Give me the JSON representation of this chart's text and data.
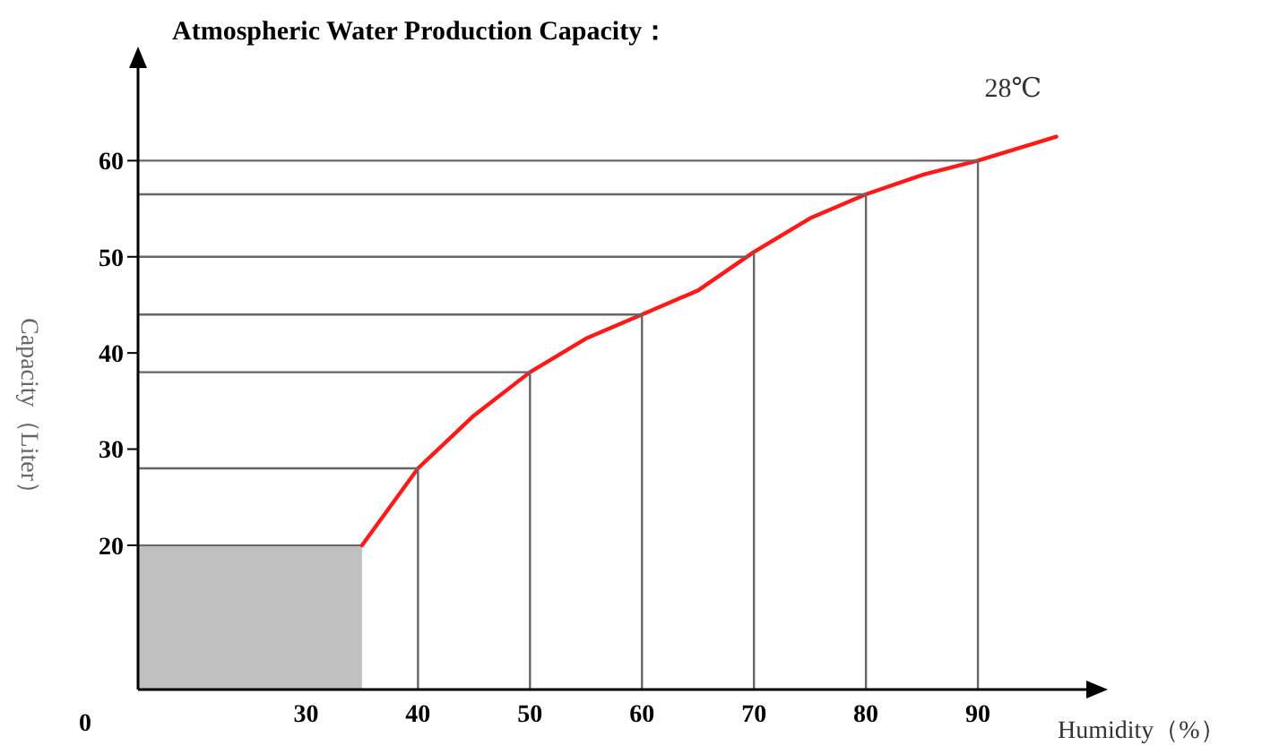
{
  "chart_data": {
    "type": "line",
    "title": "Atmospheric Water Production Capacity：",
    "xlabel": "Humidity（%）",
    "ylabel": "Capacity（Liter）",
    "xlim": [
      15,
      100
    ],
    "ylim": [
      5,
      70
    ],
    "xticks": [
      30,
      40,
      50,
      60,
      70,
      80,
      90
    ],
    "yticks": [
      20,
      30,
      40,
      50,
      60
    ],
    "grid": false,
    "legend": false,
    "marker": "none",
    "line_style": "solid",
    "series": [
      {
        "type": "area",
        "color": "#c0c0c0",
        "x": [
          15,
          35
        ],
        "values": [
          20,
          20
        ]
      },
      {
        "name": "28℃",
        "color": "#ff1a1a",
        "x": [
          35,
          40,
          45,
          50,
          55,
          60,
          65,
          70,
          75,
          80,
          85,
          90,
          97
        ],
        "values": [
          20,
          28,
          33.5,
          38,
          41.5,
          44,
          46.5,
          50.5,
          54,
          56.5,
          58.5,
          60,
          62.5
        ]
      }
    ],
    "ref_lines": [
      {
        "axis": "y",
        "value": 28
      },
      {
        "axis": "y",
        "value": 38
      },
      {
        "axis": "y",
        "value": 44
      },
      {
        "axis": "y",
        "value": 50
      },
      {
        "axis": "y",
        "value": 56.5
      },
      {
        "axis": "y",
        "value": 60
      },
      {
        "axis": "x",
        "value": 40
      },
      {
        "axis": "x",
        "value": 50
      },
      {
        "axis": "x",
        "value": 60
      },
      {
        "axis": "x",
        "value": 70
      },
      {
        "axis": "x",
        "value": 80
      },
      {
        "axis": "x",
        "value": 90
      }
    ],
    "annotations": [
      "0"
    ]
  }
}
